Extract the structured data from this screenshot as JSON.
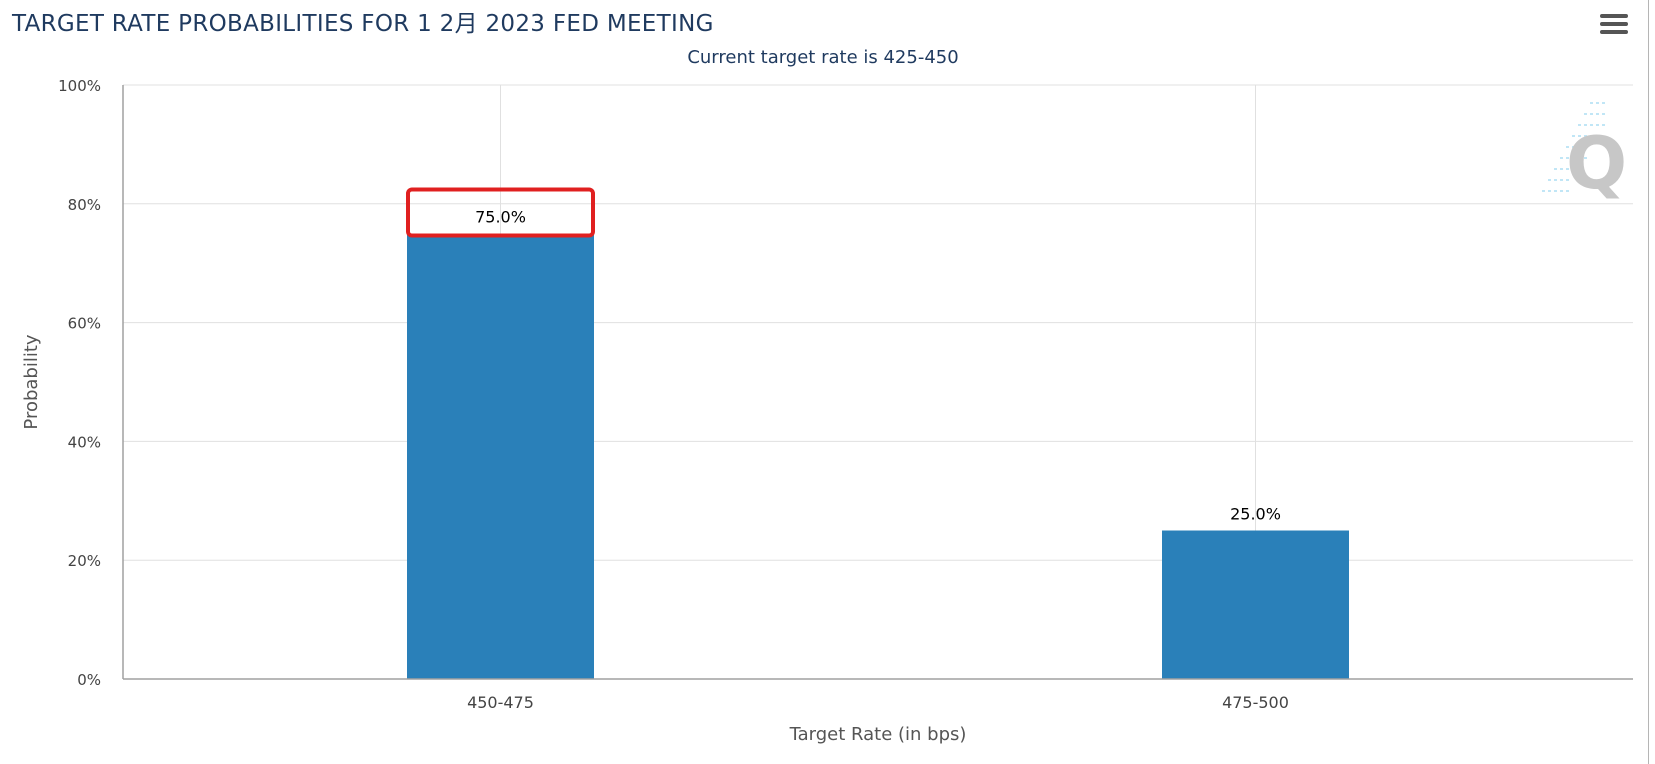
{
  "header": {
    "title": "TARGET RATE PROBABILITIES FOR 1 2月 2023 FED MEETING",
    "menu_icon": "hamburger-menu-icon"
  },
  "colors": {
    "bar": "#2a80b9",
    "highlight": "#e02020",
    "title": "#1f3a5f",
    "grid": "#e0e0e0",
    "axis": "#a0a0a0"
  },
  "chart_data": {
    "type": "bar",
    "title": "TARGET RATE PROBABILITIES FOR 1 2月 2023 FED MEETING",
    "subtitle": "Current target rate is 425-450",
    "xlabel": "Target Rate (in bps)",
    "ylabel": "Probability",
    "categories": [
      "450-475",
      "475-500"
    ],
    "values": [
      75.0,
      25.0
    ],
    "data_labels": [
      "75.0%",
      "25.0%"
    ],
    "ylim": [
      0,
      100
    ],
    "yticks": [
      "0%",
      "20%",
      "40%",
      "60%",
      "80%",
      "100%"
    ],
    "ytick_values": [
      0,
      20,
      40,
      60,
      80,
      100
    ],
    "grid": true,
    "highlighted_category": "450-475",
    "watermark_icon": "q-logo-watermark"
  }
}
